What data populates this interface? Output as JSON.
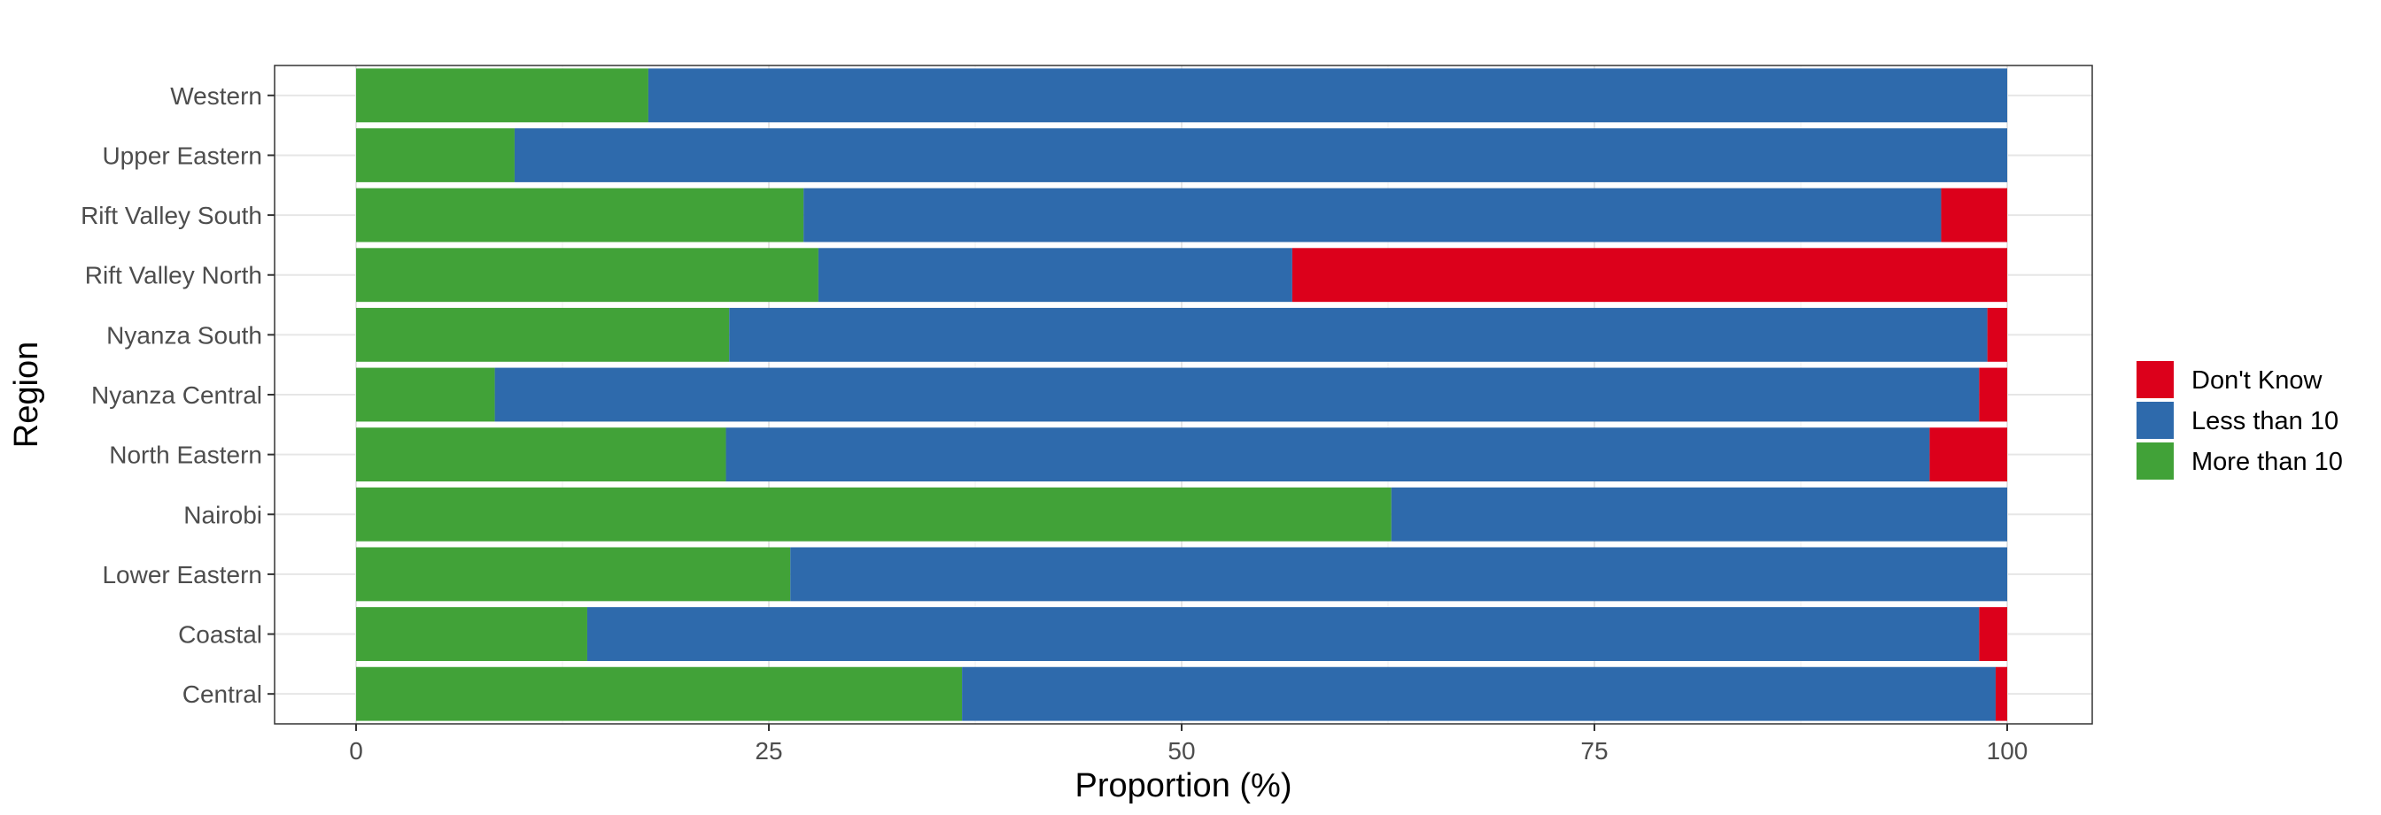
{
  "chart_data": {
    "type": "bar",
    "orientation": "horizontal",
    "stacked": true,
    "xlabel": "Proportion (%)",
    "ylabel": "Region",
    "xlim": [
      0,
      100
    ],
    "x_ticks": [
      "0",
      "25",
      "50",
      "75",
      "100"
    ],
    "grid": true,
    "legend_position": "right",
    "categories": [
      "Western",
      "Upper Eastern",
      "Rift Valley South",
      "Rift Valley North",
      "Nyanza South",
      "Nyanza Central",
      "North Eastern",
      "Nairobi",
      "Lower Eastern",
      "Coastal",
      "Central"
    ],
    "series": [
      {
        "name": "More than 10",
        "color": "#41a238",
        "values": [
          17.7,
          9.6,
          27.1,
          28.0,
          22.6,
          8.4,
          22.4,
          62.7,
          26.3,
          14.0,
          36.7
        ]
      },
      {
        "name": "Less than 10",
        "color": "#2e6aac",
        "values": [
          82.3,
          90.4,
          68.9,
          28.7,
          76.2,
          89.9,
          72.9,
          37.3,
          73.7,
          84.3,
          62.6
        ]
      },
      {
        "name": "Don't Know",
        "color": "#dc001b",
        "values": [
          0.0,
          0.0,
          4.0,
          43.3,
          1.2,
          1.7,
          4.7,
          0.0,
          0.0,
          1.7,
          0.7
        ]
      }
    ],
    "legend_order": [
      "Don't Know",
      "Less than 10",
      "More than 10"
    ]
  }
}
